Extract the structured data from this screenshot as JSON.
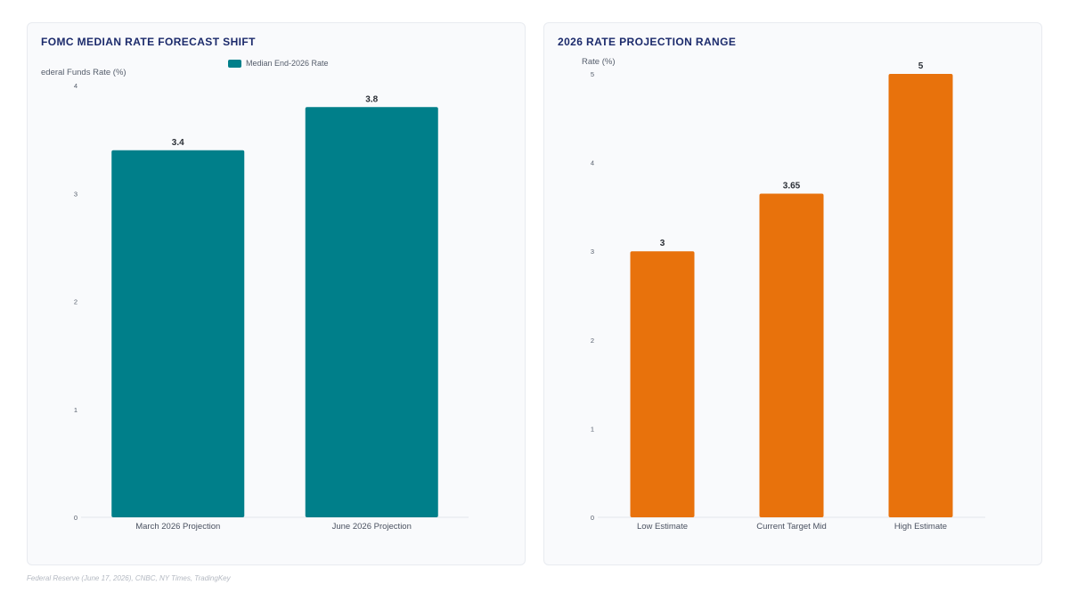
{
  "footer": {
    "source": "Federal Reserve (June 17, 2026), CNBC, NY Times, TradingKey"
  },
  "chart_data": [
    {
      "type": "bar",
      "title": "FOMC MEDIAN RATE FORECAST SHIFT",
      "ylabel": "ederal Funds Rate (%)",
      "xlabel": "",
      "categories": [
        "March 2026 Projection",
        "June 2026 Projection"
      ],
      "series": [
        {
          "name": "Median End-2026 Rate",
          "values": [
            3.4,
            3.8
          ]
        }
      ],
      "ylim": [
        0,
        4
      ],
      "yticks": [
        "0",
        "1",
        "2",
        "3",
        "4"
      ],
      "data_labels": [
        "3.4",
        "3.8"
      ],
      "legend": "top-center",
      "grid": false,
      "color": "#007f8a"
    },
    {
      "type": "bar",
      "title": "2026 RATE PROJECTION RANGE",
      "ylabel": "Rate (%)",
      "xlabel": "",
      "categories": [
        "Low Estimate",
        "Current Target Mid",
        "High Estimate"
      ],
      "series": [
        {
          "values": [
            3,
            3.65,
            5
          ]
        }
      ],
      "ylim": [
        0,
        5
      ],
      "yticks": [
        "0",
        "1",
        "2",
        "3",
        "4",
        "5"
      ],
      "data_labels": [
        "3",
        "3.65",
        "5"
      ],
      "legend": "none",
      "grid": false,
      "color": "#e8720c"
    }
  ]
}
